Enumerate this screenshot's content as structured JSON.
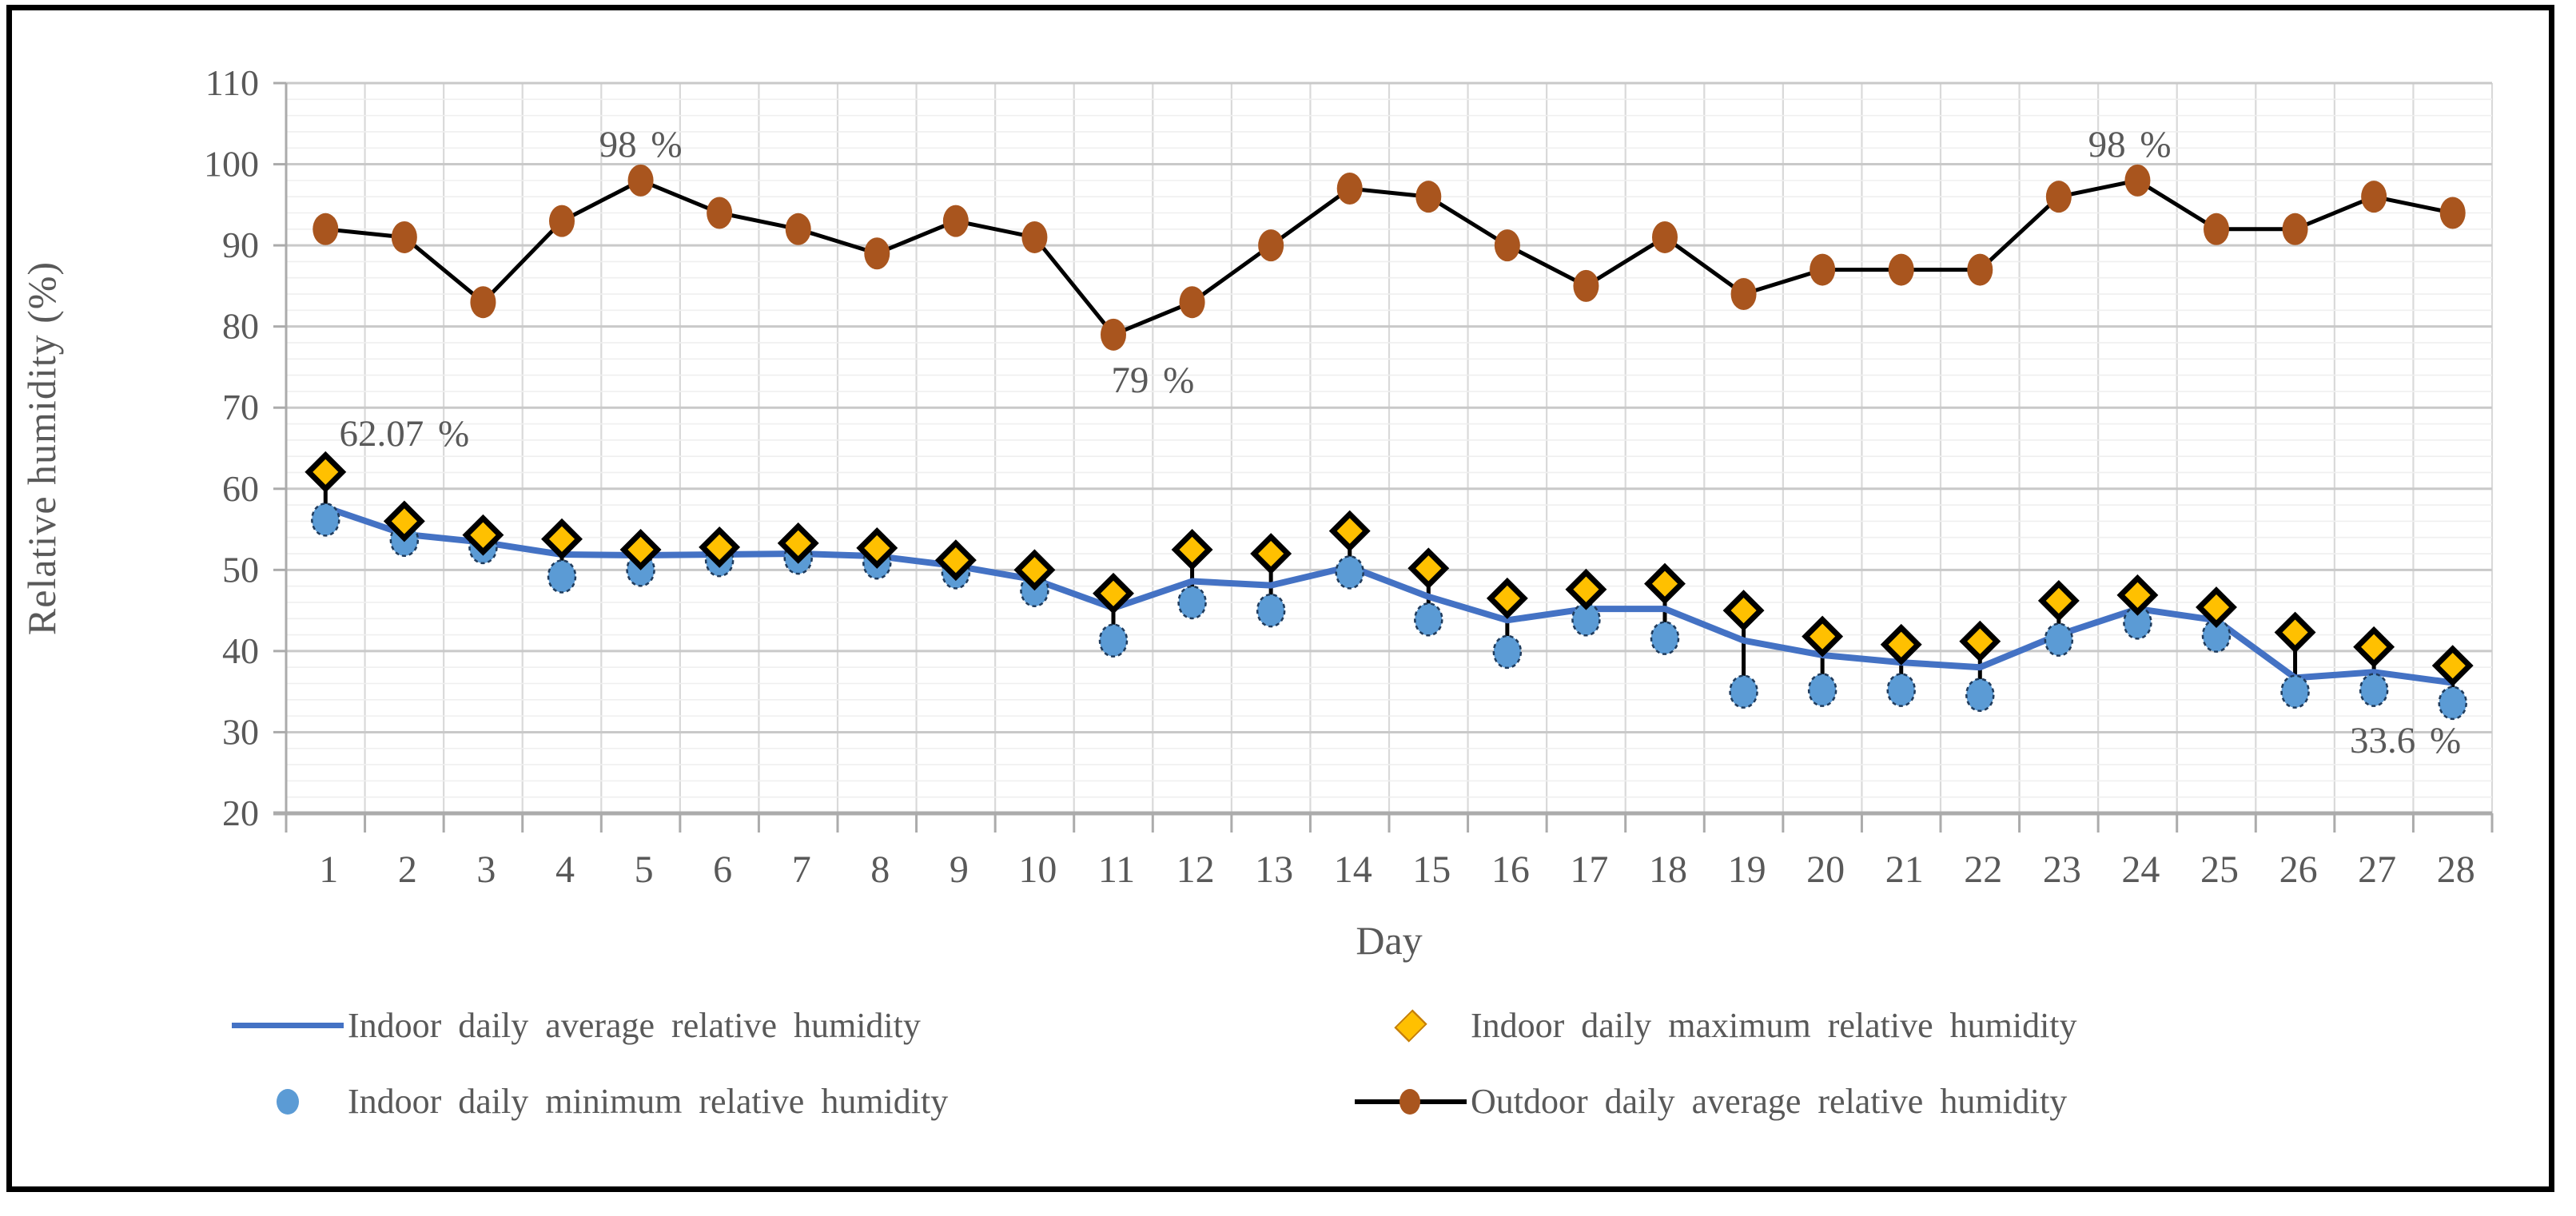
{
  "figure": {
    "kind": "excel-style line chart",
    "background": "#ffffff",
    "border_color": "#000000"
  },
  "colors": {
    "indoor_average_line": "#4472C4",
    "indoor_min_marker": "#5B9BD5",
    "indoor_max_marker": "#FFC000",
    "outdoor_marker": "#A9551E",
    "outdoor_line": "#000000",
    "highlow_line": "#000000",
    "text": "#595959",
    "grid_major": "#C9C9C9",
    "grid_minor": "#EFEFEF",
    "grid_vertical": "#D9D9D9",
    "axis": "#ABABAB"
  },
  "chart_data": {
    "type": "line",
    "title": "",
    "xlabel": "Day",
    "ylabel": "Relative humidity (%)",
    "x": [
      1,
      2,
      3,
      4,
      5,
      6,
      7,
      8,
      9,
      10,
      11,
      12,
      13,
      14,
      15,
      16,
      17,
      18,
      19,
      20,
      21,
      22,
      23,
      24,
      25,
      26,
      27,
      28
    ],
    "ylim": [
      20,
      110
    ],
    "y_ticks": [
      110,
      100,
      90,
      80,
      70,
      60,
      50,
      40,
      30,
      20
    ],
    "y_minor_step": 2,
    "grid": true,
    "legend_position": "bottom",
    "series": [
      {
        "name": "Indoor daily average relative humidity",
        "type": "line",
        "color": "#4472C4",
        "values": [
          57.7,
          54.4,
          53.4,
          51.9,
          51.8,
          51.9,
          52.0,
          51.7,
          50.5,
          48.8,
          45.3,
          48.6,
          48.1,
          50.4,
          46.7,
          43.8,
          45.2,
          45.2,
          41.3,
          39.5,
          38.6,
          38.0,
          42.0,
          45.2,
          43.8,
          36.7,
          37.4,
          36.1
        ]
      },
      {
        "name": "Indoor daily maximum relative humidity",
        "type": "scatter-diamond",
        "color": "#FFC000",
        "values": [
          62.07,
          56.0,
          54.3,
          53.8,
          52.5,
          52.8,
          53.3,
          52.7,
          51.2,
          50.0,
          47.1,
          52.5,
          52.0,
          54.8,
          50.2,
          46.5,
          47.6,
          48.3,
          45.0,
          41.8,
          40.8,
          41.2,
          46.2,
          46.9,
          45.4,
          42.3,
          40.5,
          38.2
        ]
      },
      {
        "name": "Indoor daily minimum relative humidity",
        "type": "scatter-circle",
        "color": "#5B9BD5",
        "values": [
          56.2,
          53.7,
          52.8,
          49.2,
          50.0,
          51.2,
          51.5,
          50.9,
          49.7,
          47.5,
          41.3,
          46.0,
          45.0,
          49.7,
          43.9,
          39.9,
          43.9,
          41.6,
          35.0,
          35.2,
          35.2,
          34.6,
          41.4,
          43.5,
          41.9,
          35.0,
          35.2,
          33.6
        ]
      },
      {
        "name": "Outdoor daily average relative humidity",
        "type": "line-marker",
        "color": "#A9551E",
        "line_color": "#000000",
        "values": [
          92,
          91,
          83,
          93,
          98,
          94,
          92,
          89,
          93,
          91,
          79,
          83,
          90,
          97,
          96,
          90,
          85,
          91,
          84,
          87,
          87,
          87,
          96,
          98,
          92,
          92,
          96,
          94
        ]
      }
    ],
    "annotations": [
      {
        "text": "62.07 %",
        "day": 2.0,
        "value": 66.8
      },
      {
        "text": "98 %",
        "day": 5.0,
        "value": 102.4
      },
      {
        "text": "79 %",
        "day": 11.5,
        "value": 73.4
      },
      {
        "text": "98 %",
        "day": 23.9,
        "value": 102.4
      },
      {
        "text": "33.6 %",
        "day": 27.4,
        "value": 29.0
      }
    ]
  }
}
